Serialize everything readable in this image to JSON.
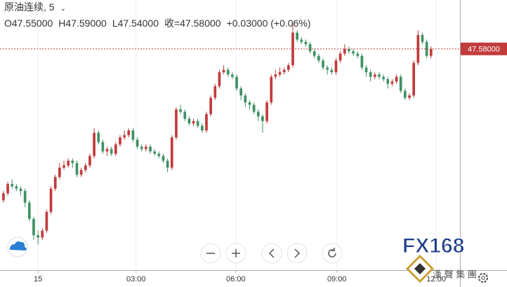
{
  "chart_data": {
    "type": "candlestick",
    "title": "原油连续, 5",
    "ohlc_text": [
      "O47.55000",
      "H47.59000",
      "L47.54000",
      "收=47.58000",
      "+0.03000 (+0.06%)"
    ],
    "up_color": "#c23b3b",
    "down_color": "#3f9164",
    "open": [
      46.93,
      46.96,
      47.0,
      46.99,
      46.98,
      46.97,
      46.92,
      46.85,
      46.78,
      46.77,
      46.8,
      46.88,
      46.98,
      47.03,
      47.07,
      47.08,
      47.1,
      47.09,
      47.04,
      47.06,
      47.08,
      47.12,
      47.22,
      47.18,
      47.14,
      47.15,
      47.13,
      47.17,
      47.2,
      47.21,
      47.23,
      47.19,
      47.16,
      47.15,
      47.16,
      47.14,
      47.13,
      47.12,
      47.1,
      47.07,
      47.2,
      47.32,
      47.31,
      47.28,
      47.26,
      47.27,
      47.25,
      47.23,
      47.3,
      47.37,
      47.42,
      47.48,
      47.49,
      47.47,
      47.46,
      47.41,
      47.38,
      47.35,
      47.34,
      47.31,
      47.29,
      47.27,
      47.35,
      47.46,
      47.47,
      47.48,
      47.49,
      47.51,
      47.65,
      47.62,
      47.61,
      47.6,
      47.57,
      47.55,
      47.53,
      47.5,
      47.49,
      47.48,
      47.53,
      47.56,
      47.58,
      47.57,
      47.56,
      47.55,
      47.5,
      47.48,
      47.46,
      47.47,
      47.46,
      47.45,
      47.43,
      47.44,
      47.46,
      47.4,
      47.37,
      47.38,
      47.52,
      47.64,
      47.61,
      47.55
    ],
    "high": [
      46.97,
      47.01,
      47.02,
      47.0,
      46.99,
      46.98,
      46.93,
      46.86,
      46.8,
      46.81,
      46.89,
      46.99,
      47.04,
      47.09,
      47.1,
      47.11,
      47.11,
      47.1,
      47.07,
      47.09,
      47.13,
      47.24,
      47.23,
      47.19,
      47.16,
      47.16,
      47.18,
      47.21,
      47.23,
      47.24,
      47.24,
      47.2,
      47.17,
      47.17,
      47.17,
      47.15,
      47.14,
      47.13,
      47.11,
      47.21,
      47.33,
      47.34,
      47.32,
      47.29,
      47.28,
      47.28,
      47.26,
      47.31,
      47.38,
      47.43,
      47.49,
      47.51,
      47.5,
      47.48,
      47.47,
      47.42,
      47.39,
      47.36,
      47.35,
      47.32,
      47.3,
      47.36,
      47.47,
      47.49,
      47.5,
      47.5,
      47.52,
      47.69,
      47.66,
      47.63,
      47.62,
      47.61,
      47.58,
      47.56,
      47.54,
      47.51,
      47.5,
      47.54,
      47.57,
      47.6,
      47.59,
      47.58,
      47.57,
      47.56,
      47.51,
      47.49,
      47.48,
      47.48,
      47.47,
      47.46,
      47.45,
      47.47,
      47.47,
      47.41,
      47.39,
      47.53,
      47.66,
      47.65,
      47.62,
      47.59
    ],
    "low": [
      46.92,
      46.95,
      46.98,
      46.97,
      46.95,
      46.9,
      46.84,
      46.76,
      46.74,
      46.76,
      46.79,
      46.87,
      46.97,
      47.02,
      47.06,
      47.07,
      47.07,
      47.03,
      47.03,
      47.05,
      47.07,
      47.11,
      47.17,
      47.13,
      47.12,
      47.12,
      47.12,
      47.16,
      47.19,
      47.2,
      47.18,
      47.15,
      47.14,
      47.14,
      47.13,
      47.12,
      47.11,
      47.09,
      47.05,
      47.06,
      47.19,
      47.3,
      47.27,
      47.25,
      47.25,
      47.24,
      47.22,
      47.22,
      47.29,
      47.36,
      47.41,
      47.47,
      47.46,
      47.45,
      47.4,
      47.36,
      47.33,
      47.32,
      47.3,
      47.27,
      47.22,
      47.26,
      47.34,
      47.45,
      47.46,
      47.47,
      47.48,
      47.5,
      47.61,
      47.6,
      47.59,
      47.56,
      47.54,
      47.52,
      47.49,
      47.47,
      47.47,
      47.47,
      47.52,
      47.55,
      47.56,
      47.55,
      47.54,
      47.49,
      47.46,
      47.44,
      47.45,
      47.45,
      47.44,
      47.41,
      47.42,
      47.43,
      47.39,
      47.36,
      47.36,
      47.37,
      47.51,
      47.6,
      47.54,
      47.54
    ],
    "close": [
      46.96,
      47.0,
      46.99,
      46.98,
      46.97,
      46.92,
      46.85,
      46.78,
      46.77,
      46.8,
      46.88,
      46.98,
      47.03,
      47.07,
      47.08,
      47.1,
      47.09,
      47.04,
      47.06,
      47.08,
      47.12,
      47.22,
      47.18,
      47.14,
      47.15,
      47.13,
      47.17,
      47.2,
      47.21,
      47.23,
      47.19,
      47.16,
      47.15,
      47.16,
      47.14,
      47.13,
      47.12,
      47.1,
      47.07,
      47.2,
      47.32,
      47.31,
      47.28,
      47.26,
      47.27,
      47.25,
      47.23,
      47.3,
      47.37,
      47.42,
      47.48,
      47.49,
      47.47,
      47.46,
      47.41,
      47.38,
      47.35,
      47.34,
      47.31,
      47.29,
      47.27,
      47.35,
      47.46,
      47.47,
      47.48,
      47.49,
      47.51,
      47.65,
      47.62,
      47.61,
      47.6,
      47.57,
      47.55,
      47.53,
      47.5,
      47.49,
      47.48,
      47.53,
      47.56,
      47.58,
      47.57,
      47.56,
      47.55,
      47.5,
      47.48,
      47.46,
      47.47,
      47.46,
      47.45,
      47.43,
      47.44,
      47.46,
      47.4,
      47.37,
      47.38,
      47.52,
      47.64,
      47.61,
      47.55,
      47.58
    ],
    "xlim": [
      -0.8,
      105.7
    ],
    "xticks": [
      {
        "value": 8,
        "label": "15"
      },
      {
        "value": 30.7,
        "label": "03:00"
      },
      {
        "value": 53.8,
        "label": "06:00"
      },
      {
        "value": 77.2,
        "label": "09:00"
      },
      {
        "value": 100.2,
        "label": "12:00"
      }
    ],
    "ylim": [
      46.63,
      47.79
    ],
    "last_price": {
      "value": 47.58,
      "label": "47.58000"
    },
    "grid": true
  },
  "watermark": {
    "logo": "FX168",
    "company": "漢 聲 集 團"
  }
}
